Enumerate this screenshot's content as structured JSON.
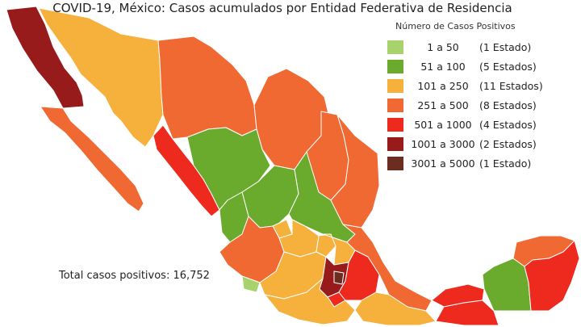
{
  "title": "COVID-19, México: Casos acumulados por Entidad Federativa de Residencia",
  "legend": {
    "title": "Número de Casos Positivos",
    "items": [
      {
        "range": "1 a 50",
        "count": "(1 Estado)",
        "color": "#a8d26b"
      },
      {
        "range": "51 a 100",
        "count": "(5 Estados)",
        "color": "#6aab2e"
      },
      {
        "range": "101 a 250",
        "count": "(11 Estados)",
        "color": "#f6b03c"
      },
      {
        "range": "251 a 500",
        "count": "(8 Estados)",
        "color": "#f06932"
      },
      {
        "range": "501 a 1000",
        "count": "(4 Estados)",
        "color": "#ee2a1e"
      },
      {
        "range": "1001 a 3000",
        "count": "(2 Estados)",
        "color": "#981b1b"
      },
      {
        "range": "3001 a 5000",
        "count": "(1 Estado)",
        "color": "#6b2d20"
      }
    ]
  },
  "total_label": "Total casos positivos: 16,752"
}
